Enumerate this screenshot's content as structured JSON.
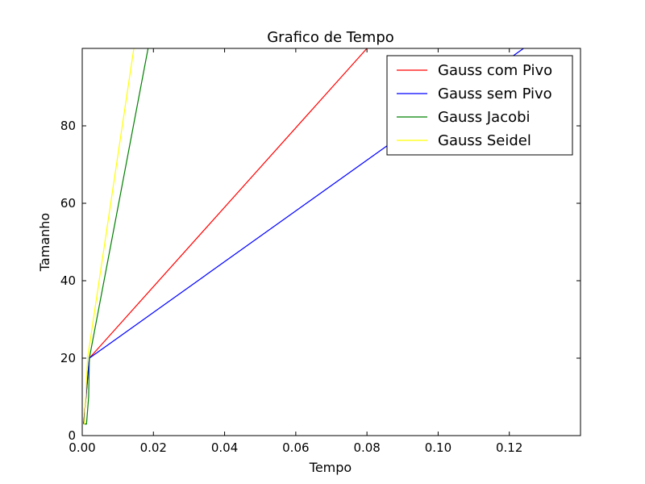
{
  "chart_data": {
    "type": "line",
    "title": "Grafico de Tempo",
    "xlabel": "Tempo",
    "ylabel": "Tamanho",
    "xlim": [
      0,
      0.14
    ],
    "ylim": [
      0,
      100
    ],
    "x_ticks": [
      0.0,
      0.02,
      0.04,
      0.06,
      0.08,
      0.1,
      0.12
    ],
    "x_tick_labels": [
      "0.00",
      "0.02",
      "0.04",
      "0.06",
      "0.08",
      "0.10",
      "0.12"
    ],
    "y_ticks": [
      0,
      20,
      40,
      60,
      80
    ],
    "y_tick_labels": [
      "0",
      "20",
      "40",
      "60",
      "80"
    ],
    "grid": false,
    "legend_position": "top-right",
    "series": [
      {
        "name": "Gauss com Pivo",
        "color": "#ff0000",
        "x": [
          0.0004,
          0.002,
          0.08
        ],
        "y": [
          3,
          20,
          100
        ]
      },
      {
        "name": "Gauss sem Pivo",
        "color": "#0000ff",
        "x": [
          0.0004,
          0.002,
          0.124
        ],
        "y": [
          3,
          20,
          100
        ]
      },
      {
        "name": "Gauss Jacobi",
        "color": "#007f00",
        "x": [
          0.0006,
          0.0012,
          0.0018,
          0.002,
          0.0185
        ],
        "y": [
          3,
          3,
          10,
          20,
          100
        ]
      },
      {
        "name": "Gauss Seidel",
        "color": "#ffff00",
        "x": [
          0.0006,
          0.0015,
          0.0145
        ],
        "y": [
          3,
          20,
          100
        ]
      }
    ]
  }
}
